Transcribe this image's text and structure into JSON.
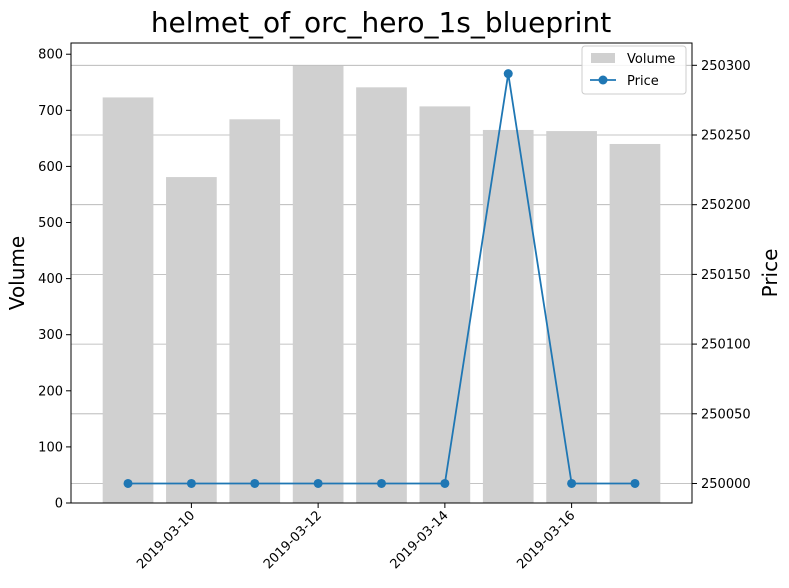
{
  "chart_data": {
    "type": "bar+line",
    "title": "helmet_of_orc_hero_1s_blueprint",
    "xlabel": "",
    "ylabel_left": "Volume",
    "ylabel_right": "Price",
    "x": [
      "2019-03-09",
      "2019-03-10",
      "2019-03-11",
      "2019-03-12",
      "2019-03-13",
      "2019-03-14",
      "2019-03-15",
      "2019-03-16",
      "2019-03-17"
    ],
    "x_tick_labels": [
      "2019-03-10",
      "2019-03-12",
      "2019-03-14",
      "2019-03-16"
    ],
    "series": [
      {
        "name": "Volume",
        "type": "bar",
        "axis": "left",
        "color": "#d0d0d0",
        "values": [
          723,
          581,
          684,
          780,
          741,
          707,
          665,
          663,
          640
        ]
      },
      {
        "name": "Price",
        "type": "line",
        "axis": "right",
        "color": "#1f77b4",
        "values": [
          250000,
          250000,
          250000,
          250000,
          250000,
          250000,
          250294,
          250000,
          250000
        ]
      }
    ],
    "ylim_left": [
      0,
      820
    ],
    "yticks_left": [
      0,
      100,
      200,
      300,
      400,
      500,
      600,
      700,
      800
    ],
    "ylim_right": [
      249986,
      250316
    ],
    "yticks_right": [
      250000,
      250050,
      250100,
      250150,
      250200,
      250250,
      250300
    ],
    "grid": "horizontal, right axis",
    "legend": "top-right"
  }
}
